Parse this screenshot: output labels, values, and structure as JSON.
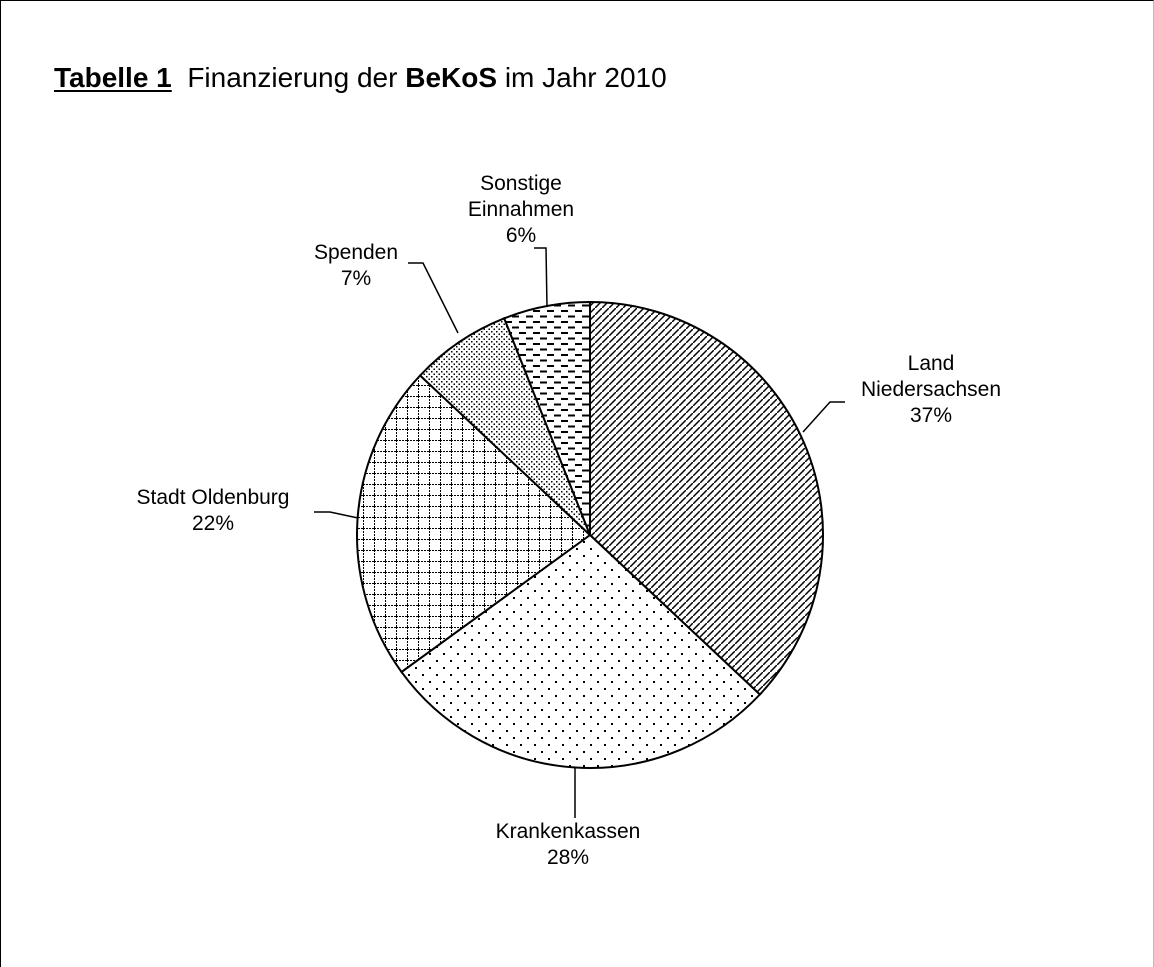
{
  "title": {
    "label": "Tabelle 1",
    "text_before": "Finanzierung der",
    "bold_word": "BeKoS",
    "text_after": "im Jahr 2010"
  },
  "chart_data": {
    "type": "pie",
    "title": "Tabelle 1 Finanzierung der BeKoS im Jahr 2010",
    "start": "12 o'clock",
    "direction": "clockwise",
    "legend": "none",
    "slices": [
      {
        "name": "Land Niedersachsen",
        "label_lines": [
          "Land",
          "Niedersachsen",
          "37%"
        ],
        "value": 37,
        "pattern": "diagonal-hatch"
      },
      {
        "name": "Krankenkassen",
        "label_lines": [
          "Krankenkassen",
          "28%"
        ],
        "value": 28,
        "pattern": "sparse-dots"
      },
      {
        "name": "Stadt Oldenburg",
        "label_lines": [
          "Stadt Oldenburg",
          "22%"
        ],
        "value": 22,
        "pattern": "grid"
      },
      {
        "name": "Spenden",
        "label_lines": [
          "Spenden",
          "7%"
        ],
        "value": 7,
        "pattern": "dense-dots"
      },
      {
        "name": "Sonstige Einnahmen",
        "label_lines": [
          "Sonstige",
          "Einnahmen",
          "6%"
        ],
        "value": 6,
        "pattern": "dashes"
      }
    ],
    "colors": {
      "fill": "#ffffff",
      "ink": "#000000"
    }
  }
}
